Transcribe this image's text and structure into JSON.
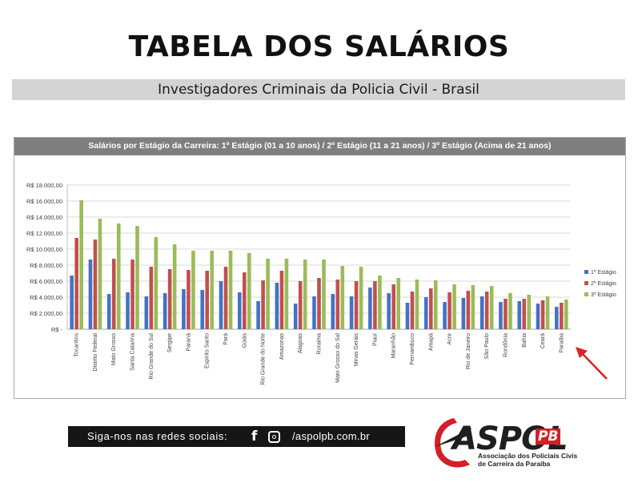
{
  "header": {
    "title": "TABELA DOS SALÁRIOS",
    "subtitle": "Investigadores Criminais da Policia Civil - Brasil"
  },
  "chart_data": {
    "type": "bar",
    "title": "Salários por Estágio da Carreira: 1º Estágio (01 a 10 anos) / 2º Estágio (11 a 21 anos)  / 3º Estágio (Acima de 21 anos)",
    "xlabel": "",
    "ylabel": "",
    "ylim": [
      0,
      18000
    ],
    "yticks": [
      "R$ -",
      "R$ 2.000,00",
      "R$ 4.000,00",
      "R$ 6.000,00",
      "R$ 8.000,00",
      "R$ 10.000,00",
      "R$ 12.000,00",
      "R$ 14.000,00",
      "R$ 16.000,00",
      "R$ 18.000,00"
    ],
    "grid": true,
    "legend_position": "right",
    "categories": [
      "Tocantins",
      "Distrito Federal",
      "Mato Grosso",
      "Santa Catarina",
      "Rio Grande do Sul",
      "Sergipe",
      "Paraná",
      "Espírito Santo",
      "Pará",
      "Goiás",
      "Rio Grande do Norte",
      "Amazonas",
      "Alagoas",
      "Roraima",
      "Mato Grosso do Sul",
      "Minas Gerais",
      "Piauí",
      "Maranhão",
      "Pernambuco",
      "Amapá",
      "Acre",
      "Rio de Janeiro",
      "São Paulo",
      "Rondônia",
      "Bahia",
      "Ceará",
      "Paraíba"
    ],
    "series": [
      {
        "name": "1º Estágio",
        "color": "#4472c4",
        "values": [
          6700,
          8700,
          4400,
          4600,
          4100,
          4500,
          5000,
          4900,
          6000,
          4600,
          3500,
          5800,
          3200,
          4100,
          4400,
          4100,
          5200,
          4500,
          3300,
          4000,
          3400,
          3900,
          4100,
          3400,
          3500,
          3200,
          2800
        ]
      },
      {
        "name": "2º Estágio",
        "color": "#c0504d",
        "values": [
          11400,
          11200,
          8800,
          8700,
          7800,
          7500,
          7400,
          7300,
          7800,
          7100,
          6100,
          7300,
          6000,
          6400,
          6200,
          6000,
          6000,
          5600,
          4700,
          5100,
          4600,
          4800,
          4700,
          3800,
          3800,
          3600,
          3300
        ]
      },
      {
        "name": "3º Estágio",
        "color": "#9bbb59",
        "values": [
          16100,
          13800,
          13200,
          12900,
          11500,
          10600,
          9800,
          9800,
          9800,
          9500,
          8800,
          8800,
          8700,
          8700,
          7900,
          7800,
          6700,
          6400,
          6200,
          6100,
          5600,
          5500,
          5400,
          4500,
          4300,
          4100,
          3700
        ]
      }
    ],
    "annotation": "red-arrow-pointing-to-paraiba"
  },
  "footer": {
    "follow_label": "Siga-nos nas redes sociais:",
    "facebook_icon": "facebook-icon",
    "instagram_icon": "instagram-icon",
    "handle": "/aspolpb.com.br"
  },
  "logo": {
    "name": "ASPOL",
    "suffix": "PB",
    "line1": "Associação dos Policiais Civis",
    "line2": "de Carreira da Paraíba",
    "colors": {
      "red": "#d32027",
      "dark": "#1f1f1f"
    }
  }
}
